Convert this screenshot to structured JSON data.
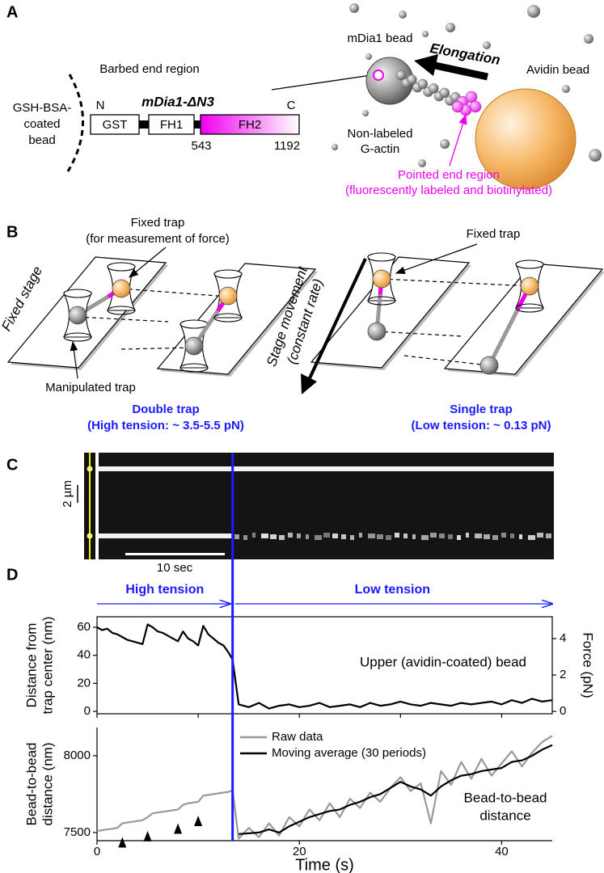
{
  "panel_labels": [
    "A",
    "B",
    "C",
    "D"
  ],
  "panel_a": {
    "mdia1_bead": "mDia1 bead",
    "elongation": "Elongation",
    "avidin_bead": "Avidin bead",
    "barbed_end": "Barbed end region",
    "coated_bead": [
      "GSH-BSA-",
      "coated",
      "bead"
    ],
    "construct": {
      "name": "mDia1-ΔN3",
      "n_term": "N",
      "c_term": "C",
      "domains": [
        "GST",
        "FH1",
        "FH2"
      ],
      "positions": [
        543,
        1192
      ]
    },
    "g_actin": [
      "Non-labeled",
      "G-actin"
    ],
    "pointed_end": [
      "Pointed end region",
      "(fluorescently labeled and biotinylated)"
    ]
  },
  "panel_b": {
    "fixed_trap_left": [
      "Fixed trap",
      "(for measurement of force)"
    ],
    "fixed_stage": "Fixed stage",
    "manipulated_trap": "Manipulated trap",
    "double_trap": [
      "Double trap",
      "(High tension: ~ 3.5-5.5 pN)"
    ],
    "stage_movement": [
      "Stage movement",
      "(constant rate)"
    ],
    "fixed_trap_right": "Fixed trap",
    "single_trap": [
      "Single trap",
      "(Low tension: ~ 0.13 pN)"
    ]
  },
  "panel_c": {
    "scale_space": "2 µm",
    "scale_time": "10 sec"
  },
  "panel_d": {
    "high_tension": "High tension",
    "low_tension": "Low tension"
  },
  "chart_data": [
    {
      "type": "line",
      "x": [
        0,
        0.5,
        1,
        1.5,
        2,
        2.5,
        3,
        3.5,
        4,
        4.5,
        5,
        5.5,
        6,
        6.5,
        7,
        7.5,
        8,
        8.5,
        9,
        9.5,
        10,
        10.5,
        11,
        11.5,
        12,
        12.5,
        13,
        13.4,
        14,
        15,
        16,
        17,
        18,
        19,
        20,
        21,
        22,
        23,
        24,
        25,
        26,
        27,
        28,
        29,
        30,
        31,
        32,
        33,
        34,
        35,
        36,
        37,
        38,
        39,
        40,
        41,
        42,
        43,
        44,
        45
      ],
      "xlim": [
        0,
        45
      ],
      "xticks": [
        0,
        10,
        20,
        30,
        40
      ],
      "ylim": [
        -1.7,
        67.5
      ],
      "yticks": [
        0,
        20,
        40,
        60
      ],
      "ylabel": [
        "Distance from",
        "trap center (nm)"
      ],
      "y2lim": [
        -0.13,
        5.2
      ],
      "y2ticks": [
        0,
        2,
        4
      ],
      "y2label": "Force (pN)",
      "annotation": "Upper (avidin-coated) bead",
      "switch_x": 13.4,
      "series": [
        {
          "color": "#000000",
          "values": [
            60,
            58,
            59,
            56,
            55,
            53,
            51,
            50,
            49,
            48,
            62,
            60,
            57,
            56,
            54,
            52,
            50,
            57,
            52,
            50,
            47,
            61,
            55,
            52,
            49,
            47,
            42,
            37,
            5,
            3,
            6,
            2,
            4,
            5,
            3,
            4,
            6,
            3,
            4,
            5,
            3,
            6,
            4,
            5,
            7,
            5,
            4,
            6,
            5,
            4,
            6,
            5,
            6,
            7,
            5,
            8,
            6,
            9,
            7,
            8
          ]
        }
      ]
    },
    {
      "type": "line",
      "x": [
        0,
        0.5,
        1,
        1.5,
        2,
        2.5,
        3,
        3.5,
        4,
        4.5,
        5,
        5.5,
        6,
        6.5,
        7,
        7.5,
        8,
        8.5,
        9,
        9.5,
        10,
        10.5,
        11,
        11.5,
        12,
        12.5,
        13,
        13.4,
        14,
        15,
        16,
        17,
        18,
        19,
        20,
        21,
        22,
        23,
        24,
        25,
        26,
        27,
        28,
        29,
        30,
        31,
        32,
        33,
        34,
        35,
        36,
        37,
        38,
        39,
        40,
        41,
        42,
        43,
        44,
        45
      ],
      "xlim": [
        0,
        45
      ],
      "xticks": [
        0,
        20,
        40
      ],
      "xlabel": "Time (s)",
      "ylim": [
        7447,
        8184
      ],
      "yticks": [
        7500,
        8000
      ],
      "ylabel": [
        "Bead-to-bead",
        "distance (nm)"
      ],
      "annotation": [
        "Bead-to-bead",
        "distance"
      ],
      "step_markers": [
        2.5,
        5,
        8,
        10
      ],
      "series": [
        {
          "name": "Raw data",
          "color": "#999999",
          "values": [
            7510,
            7515,
            7520,
            7525,
            7530,
            7560,
            7565,
            7570,
            7575,
            7580,
            7600,
            7625,
            7630,
            7635,
            7640,
            7645,
            7650,
            7680,
            7690,
            7695,
            7700,
            7740,
            7745,
            7750,
            7755,
            7760,
            7765,
            7775,
            7460,
            7530,
            7470,
            7560,
            7480,
            7600,
            7540,
            7650,
            7580,
            7690,
            7600,
            7720,
            7660,
            7760,
            7700,
            7790,
            7860,
            7770,
            7820,
            7560,
            7900,
            7810,
            7960,
            7850,
            7980,
            7870,
            7950,
            8030,
            7930,
            8020,
            8090,
            8130
          ]
        },
        {
          "name": "Moving average (30 periods)",
          "color": "#000000",
          "values": [
            null,
            null,
            null,
            null,
            null,
            null,
            null,
            null,
            null,
            null,
            null,
            null,
            null,
            null,
            null,
            null,
            null,
            null,
            null,
            null,
            null,
            null,
            null,
            null,
            null,
            null,
            null,
            null,
            7490,
            7495,
            7500,
            7520,
            7500,
            7540,
            7570,
            7600,
            7620,
            7640,
            7650,
            7680,
            7700,
            7730,
            7750,
            7790,
            7830,
            7800,
            7780,
            7740,
            7800,
            7840,
            7870,
            7880,
            7900,
            7910,
            7920,
            7960,
            7970,
            8000,
            8040,
            8070
          ]
        }
      ]
    }
  ]
}
